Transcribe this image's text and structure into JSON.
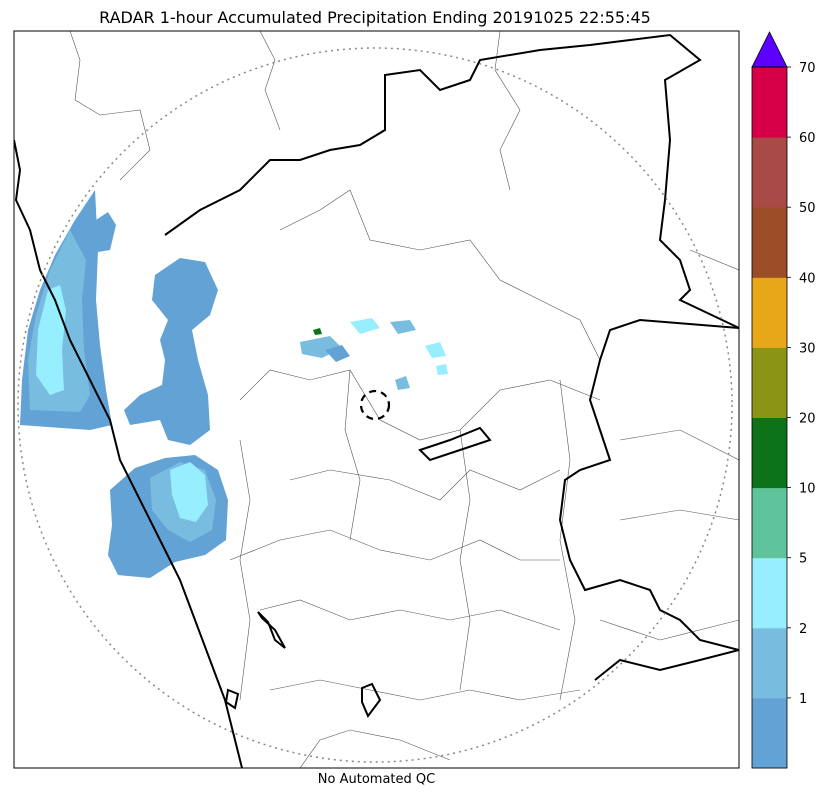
{
  "title": "RADAR 1-hour Accumulated Precipitation Ending 20191025 22:55:45",
  "footer": "No Automated QC",
  "colorbar": {
    "ticks": [
      "1",
      "2",
      "5",
      "10",
      "20",
      "30",
      "40",
      "50",
      "60",
      "70"
    ],
    "colors": [
      "#63a2d4",
      "#78bde0",
      "#96eeff",
      "#5fc49b",
      "#0c7318",
      "#8b9414",
      "#e8a719",
      "#9b4d28",
      "#a84a45",
      "#d50048",
      "#5d00ff"
    ],
    "extend": "max"
  },
  "map": {
    "range_ring": "dotted-circle",
    "radar_site_marker": "dashed-circle"
  }
}
